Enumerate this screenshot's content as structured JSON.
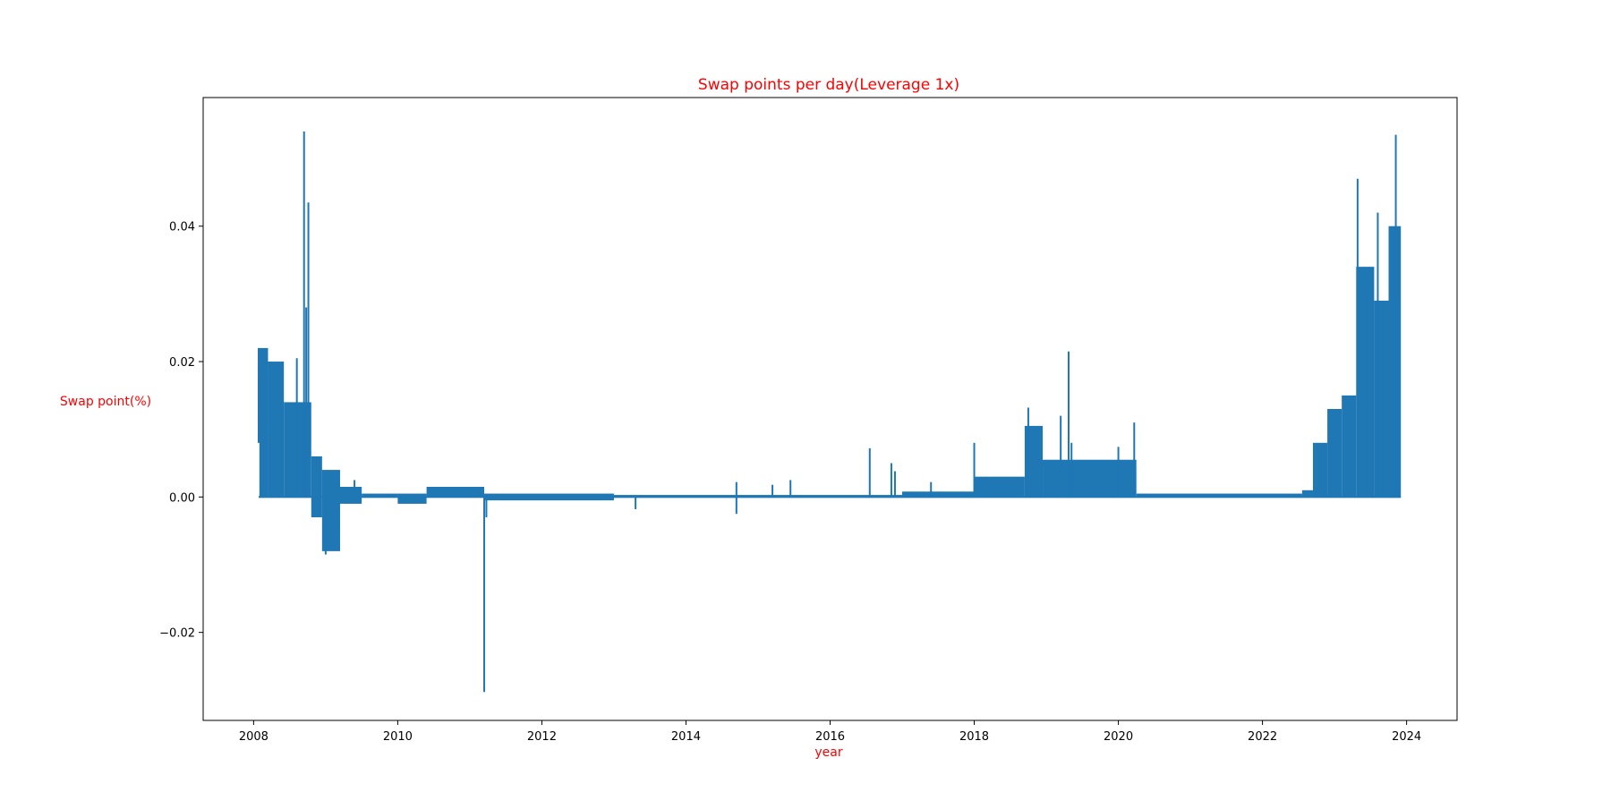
{
  "chart_data": {
    "type": "line",
    "title": "Swap points per day(Leverage 1x)",
    "xlabel": "year",
    "ylabel": "Swap point(%)",
    "xlim": [
      2007.3,
      2024.7
    ],
    "ylim": [
      -0.033,
      0.059
    ],
    "x_ticks": [
      "2008",
      "2010",
      "2012",
      "2014",
      "2016",
      "2018",
      "2020",
      "2022",
      "2024"
    ],
    "y_ticks": [
      "−0.02",
      "0.00",
      "0.02",
      "0.04"
    ],
    "grid": false,
    "series": [
      {
        "color": "#1f77b4",
        "segments": [
          {
            "x0": 2008.08,
            "x1": 2008.2,
            "low": 0.0,
            "high": 0.022
          },
          {
            "x0": 2008.2,
            "x1": 2008.42,
            "low": 0.0,
            "high": 0.02
          },
          {
            "x0": 2008.42,
            "x1": 2008.6,
            "low": 0.0,
            "high": 0.014
          },
          {
            "x0": 2008.6,
            "x1": 2008.8,
            "low": 0.0,
            "high": 0.014
          },
          {
            "x0": 2008.8,
            "x1": 2008.95,
            "low": -0.003,
            "high": 0.006
          },
          {
            "x0": 2008.95,
            "x1": 2009.2,
            "low": -0.008,
            "high": 0.004
          },
          {
            "x0": 2009.2,
            "x1": 2009.5,
            "low": -0.001,
            "high": 0.0015
          },
          {
            "x0": 2009.5,
            "x1": 2010.0,
            "low": 0.0,
            "high": 0.0005
          },
          {
            "x0": 2010.0,
            "x1": 2010.4,
            "low": -0.001,
            "high": 0.0005
          },
          {
            "x0": 2010.4,
            "x1": 2011.2,
            "low": 0.0,
            "high": 0.0015
          },
          {
            "x0": 2011.2,
            "x1": 2013.0,
            "low": -0.0005,
            "high": 0.0005
          },
          {
            "x0": 2013.0,
            "x1": 2017.0,
            "low": 0.0,
            "high": 0.0003
          },
          {
            "x0": 2017.0,
            "x1": 2018.0,
            "low": 0.0,
            "high": 0.0008
          },
          {
            "x0": 2018.0,
            "x1": 2018.7,
            "low": 0.0,
            "high": 0.003
          },
          {
            "x0": 2018.7,
            "x1": 2018.95,
            "low": 0.0,
            "high": 0.0105
          },
          {
            "x0": 2018.95,
            "x1": 2020.25,
            "low": 0.0,
            "high": 0.0055
          },
          {
            "x0": 2020.25,
            "x1": 2022.55,
            "low": 0.0,
            "high": 0.0005
          },
          {
            "x0": 2022.55,
            "x1": 2022.7,
            "low": 0.0,
            "high": 0.001
          },
          {
            "x0": 2022.7,
            "x1": 2022.9,
            "low": 0.0,
            "high": 0.008
          },
          {
            "x0": 2022.9,
            "x1": 2023.1,
            "low": 0.0,
            "high": 0.013
          },
          {
            "x0": 2023.1,
            "x1": 2023.3,
            "low": 0.0,
            "high": 0.015
          },
          {
            "x0": 2023.3,
            "x1": 2023.55,
            "low": 0.0,
            "high": 0.034
          },
          {
            "x0": 2023.55,
            "x1": 2023.75,
            "low": 0.0,
            "high": 0.029
          },
          {
            "x0": 2023.75,
            "x1": 2023.92,
            "low": 0.0,
            "high": 0.04
          }
        ],
        "spikes": [
          {
            "x": 2008.07,
            "low": 0.008,
            "high": 0.022
          },
          {
            "x": 2008.6,
            "low": 0.0,
            "high": 0.0205
          },
          {
            "x": 2008.7,
            "low": 0.0,
            "high": 0.054
          },
          {
            "x": 2008.76,
            "low": 0.0,
            "high": 0.0435
          },
          {
            "x": 2008.73,
            "low": 0.0,
            "high": 0.028
          },
          {
            "x": 2009.4,
            "low": 0.0,
            "high": 0.0025
          },
          {
            "x": 2009.0,
            "low": -0.0085,
            "high": 0.0
          },
          {
            "x": 2011.2,
            "low": -0.0288,
            "high": 0.0
          },
          {
            "x": 2011.23,
            "low": -0.003,
            "high": 0.0
          },
          {
            "x": 2013.3,
            "low": -0.0018,
            "high": 0.0
          },
          {
            "x": 2014.7,
            "low": -0.0025,
            "high": 0.0022
          },
          {
            "x": 2015.2,
            "low": 0.0,
            "high": 0.0018
          },
          {
            "x": 2015.45,
            "low": 0.0,
            "high": 0.0025
          },
          {
            "x": 2016.55,
            "low": 0.0,
            "high": 0.0072
          },
          {
            "x": 2016.85,
            "low": 0.0,
            "high": 0.005
          },
          {
            "x": 2016.9,
            "low": 0.0,
            "high": 0.0038
          },
          {
            "x": 2017.4,
            "low": 0.0,
            "high": 0.0022
          },
          {
            "x": 2018.0,
            "low": 0.0,
            "high": 0.008
          },
          {
            "x": 2018.75,
            "low": 0.0,
            "high": 0.0132
          },
          {
            "x": 2019.2,
            "low": 0.0,
            "high": 0.012
          },
          {
            "x": 2019.31,
            "low": 0.0,
            "high": 0.0215
          },
          {
            "x": 2019.35,
            "low": 0.0,
            "high": 0.008
          },
          {
            "x": 2020.0,
            "low": 0.0,
            "high": 0.0074
          },
          {
            "x": 2020.22,
            "low": 0.0,
            "high": 0.011
          },
          {
            "x": 2023.32,
            "low": 0.0,
            "high": 0.047
          },
          {
            "x": 2023.6,
            "low": 0.0,
            "high": 0.042
          },
          {
            "x": 2023.85,
            "low": 0.0,
            "high": 0.0535
          }
        ]
      }
    ]
  }
}
